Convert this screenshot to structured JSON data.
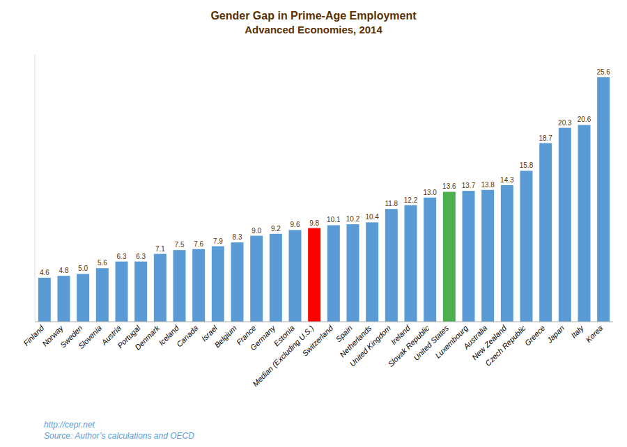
{
  "chart_data": {
    "type": "bar",
    "title": "Gender Gap in Prime-Age Employment",
    "subtitle": "Advanced Economies, 2014",
    "annotations": [
      "http://cepr.net",
      "Source: Author’s calculations and OECD"
    ],
    "categories": [
      "Finland",
      "Norway",
      "Sweden",
      "Slovenia",
      "Austria",
      "Portugal",
      "Denmark",
      "Iceland",
      "Canada",
      "Israel",
      "Belgium",
      "France",
      "Germany",
      "Estonia",
      "Median (Excluding U.S.)",
      "Switzerland",
      "Spain",
      "Netherlands",
      "United Kingdom",
      "Ireland",
      "Slovak Republic",
      "United States",
      "Luxembourg",
      "Australia",
      "New Zealand",
      "Czech Republic",
      "Greece",
      "Japan",
      "Italy",
      "Korea"
    ],
    "values": [
      4.6,
      4.8,
      5.0,
      5.6,
      6.3,
      6.3,
      7.1,
      7.5,
      7.6,
      7.9,
      8.3,
      9.0,
      9.2,
      9.6,
      9.8,
      10.1,
      10.2,
      10.4,
      11.8,
      12.2,
      13.0,
      13.6,
      13.7,
      13.8,
      14.3,
      15.8,
      18.7,
      20.3,
      20.6,
      25.6
    ],
    "value_labels": [
      "4.6",
      "4.8",
      "5.0",
      "5.6",
      "6.3",
      "6.3",
      "7.1",
      "7.5",
      "7.6",
      "7.9",
      "8.3",
      "9.0",
      "9.2",
      "9.6",
      "9.8",
      "10.1",
      "10.2",
      "10.4",
      "11.8",
      "12.2",
      "13.0",
      "13.6",
      "13.7",
      "13.8",
      "14.3",
      "15.8",
      "18.7",
      "20.3",
      "20.6",
      "25.6"
    ],
    "colors": [
      "#5B9BD5",
      "#5B9BD5",
      "#5B9BD5",
      "#5B9BD5",
      "#5B9BD5",
      "#5B9BD5",
      "#5B9BD5",
      "#5B9BD5",
      "#5B9BD5",
      "#5B9BD5",
      "#5B9BD5",
      "#5B9BD5",
      "#5B9BD5",
      "#5B9BD5",
      "#FF0000",
      "#5B9BD5",
      "#5B9BD5",
      "#5B9BD5",
      "#5B9BD5",
      "#5B9BD5",
      "#5B9BD5",
      "#4CAF50",
      "#5B9BD5",
      "#5B9BD5",
      "#5B9BD5",
      "#5B9BD5",
      "#5B9BD5",
      "#5B9BD5",
      "#5B9BD5",
      "#5B9BD5"
    ],
    "ylim": [
      0,
      28
    ],
    "data_labels": true,
    "tick_labels": "x",
    "grid": false
  }
}
